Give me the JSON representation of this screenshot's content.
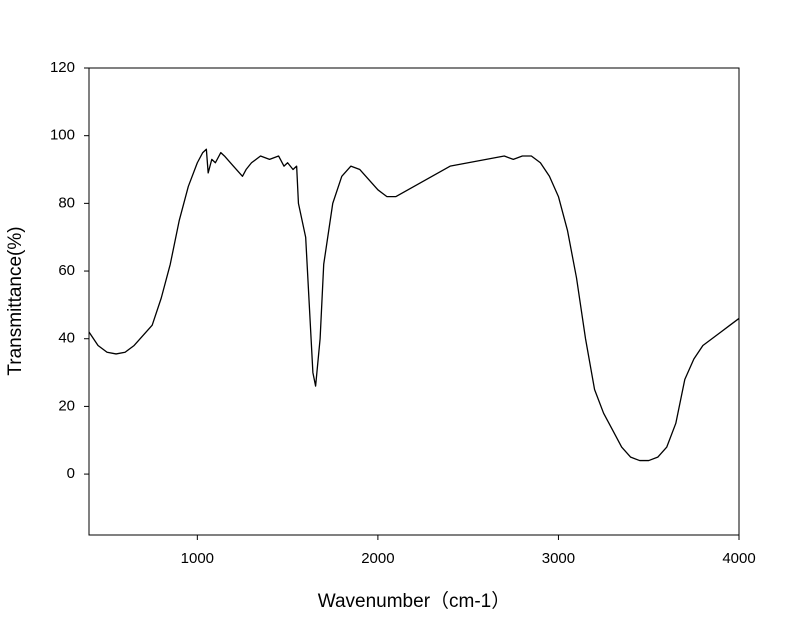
{
  "chart_data": {
    "type": "line",
    "x_label": "Wavenumber（cm-1）",
    "y_label": "Transmittance(%)",
    "xlim": [
      400,
      4000
    ],
    "xticks": [
      1000,
      2000,
      3000,
      4000
    ],
    "ylim": [
      -18,
      120
    ],
    "yticks": [
      0,
      20,
      40,
      60,
      80,
      100,
      120
    ],
    "grid": false,
    "series": [
      {
        "color": "#000000",
        "x": [
          400,
          450,
          500,
          550,
          600,
          650,
          700,
          750,
          800,
          850,
          900,
          950,
          1000,
          1030,
          1050,
          1060,
          1080,
          1100,
          1130,
          1150,
          1200,
          1250,
          1270,
          1300,
          1350,
          1400,
          1450,
          1480,
          1500,
          1530,
          1550,
          1560,
          1600,
          1620,
          1640,
          1655,
          1680,
          1700,
          1750,
          1800,
          1850,
          1900,
          1950,
          2000,
          2050,
          2100,
          2200,
          2300,
          2400,
          2500,
          2600,
          2700,
          2750,
          2800,
          2850,
          2900,
          2950,
          3000,
          3050,
          3100,
          3150,
          3200,
          3250,
          3300,
          3350,
          3400,
          3450,
          3500,
          3550,
          3600,
          3650,
          3700,
          3750,
          3800,
          3850,
          3900,
          3950,
          4000
        ],
        "values": [
          42,
          38,
          36,
          35.5,
          36,
          38,
          41,
          44,
          52,
          62,
          75,
          85,
          92,
          95,
          96,
          89,
          93,
          92,
          95,
          94,
          91,
          88,
          90,
          92,
          94,
          93,
          94,
          91,
          92,
          90,
          91,
          80,
          70,
          50,
          30,
          26,
          40,
          62,
          80,
          88,
          91,
          90,
          87,
          84,
          82,
          82,
          85,
          88,
          91,
          92,
          93,
          94,
          93,
          94,
          94,
          92,
          88,
          82,
          72,
          58,
          40,
          25,
          18,
          13,
          8,
          5,
          4,
          4,
          5,
          8,
          15,
          28,
          34,
          38,
          40,
          42,
          44,
          46
        ]
      }
    ]
  }
}
